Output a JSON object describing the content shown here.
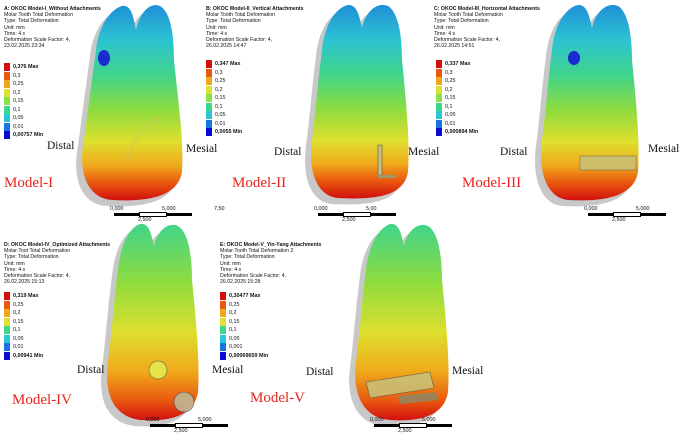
{
  "legend_colors": [
    "#d40d0d",
    "#e55a0f",
    "#f0a81c",
    "#dfe032",
    "#8ee04a",
    "#3cd78b",
    "#2bc7d6",
    "#1a74e0",
    "#0a0ad0"
  ],
  "scale_colors": {
    "black": "#000000",
    "white": "#ffffff"
  },
  "panels": [
    {
      "id": "A",
      "info": [
        "A: OKOC Model-I_Without Attachments",
        "Molar Tooth Total Deformation",
        "Type: Total Deformation",
        "Unit: mm",
        "Time: 4 s",
        "Deformation Scale Factor: 4,",
        "23.02.2025 23:34"
      ],
      "legend": [
        "0,376 Max",
        "0,3",
        "0,25",
        "0,2",
        "0,15",
        "0,1",
        "0,05",
        "0,01",
        "0,00757 Min"
      ],
      "model": "Model-I",
      "distal": "Distal",
      "mesial": "Mesial",
      "scale": [
        "0,000",
        "5,000",
        "2,500",
        "7,50"
      ]
    },
    {
      "id": "B",
      "info": [
        "B: OKOC Model-II_Vertical Attachments",
        "Molar Tooth Total Deformation",
        "Type: Total Deformation",
        "Unit: mm",
        "Time: 4 s",
        "Deformation Scale Factor: 4,",
        "26.02.2025 14:47"
      ],
      "legend": [
        "0,347 Max",
        "0,3",
        "0,25",
        "0,2",
        "0,15",
        "0,1",
        "0,05",
        "0,01",
        "0,0055 Min"
      ],
      "model": "Model-II",
      "distal": "Distal",
      "mesial": "Mesial",
      "scale": [
        "0,000",
        "5,00",
        "2,500",
        ""
      ]
    },
    {
      "id": "C",
      "info": [
        "C: OKOC Model-III_Horizontal Attachments",
        "Molar Tooth Total Deformation",
        "Type: Total Deformation",
        "Unit: mm",
        "Time: 4 s",
        "Deformation Scale Factor: 4,",
        "26.02.2025 14:51"
      ],
      "legend": [
        "0,337 Max",
        "0,3",
        "0,25",
        "0,2",
        "0,15",
        "0,1",
        "0,05",
        "0,01",
        "0,000894 Min"
      ],
      "model": "Model-III",
      "distal": "Distal",
      "mesial": "Mesial",
      "scale": [
        "0,000",
        "5,000",
        "2,500",
        ""
      ]
    },
    {
      "id": "D",
      "info": [
        "D: OKOC Model-IV_Optimized Attachments",
        "Molar Toot Total Deformation",
        "Type: Total Deformation",
        "Unit: mm",
        "Time: 4 s",
        "Deformation Scale Factor: 4,",
        "26.02.2025 15:13"
      ],
      "legend": [
        "0,319 Max",
        "0,25",
        "0,2",
        "0,15",
        "0,1",
        "0,05",
        "0,01",
        "0,00941 Min"
      ],
      "model": "Model-IV",
      "distal": "Distal",
      "mesial": "Mesial",
      "scale": [
        "0,000",
        "5,000",
        "2,500",
        ""
      ]
    },
    {
      "id": "E",
      "info": [
        "E: OKOC Model-V_Yin-Yang Attachments",
        "Molar Tooth Total Deformation 2",
        "Type: Total Deformation",
        "Unit: mm",
        "Time: 4 s",
        "Deformation Scale Factor: 4,",
        "26.02.2025 15:28"
      ],
      "legend": [
        "0,30477 Max",
        "0,25",
        "0,2",
        "0,15",
        "0,1",
        "0,05",
        "0,001",
        "0,00069659 Min"
      ],
      "model": "Model-V",
      "distal": "Distal",
      "mesial": "Mesial",
      "scale": [
        "0,000",
        "5,000",
        "2,500",
        ""
      ]
    }
  ]
}
